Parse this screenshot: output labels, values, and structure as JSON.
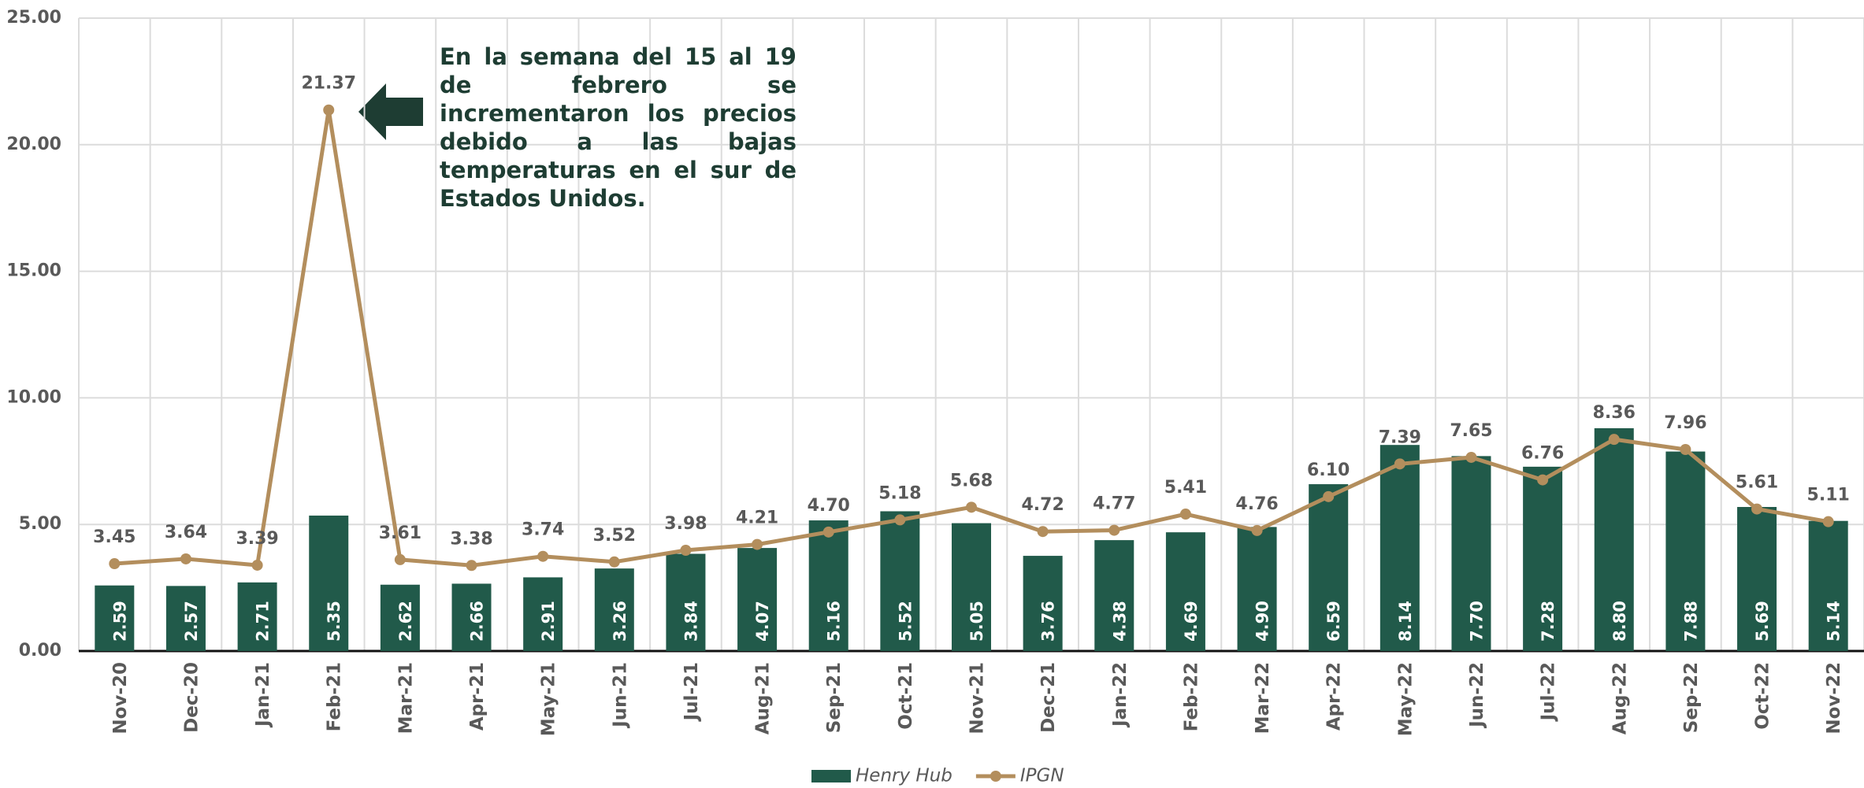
{
  "chart_data": {
    "type": "bar",
    "annotation": "En la semana del 15 al 19 de febrero se incrementaron los precios debido a las bajas temperaturas en el sur de Estados Unidos.",
    "categories": [
      "Nov-20",
      "Dec-20",
      "Jan-21",
      "Feb-21",
      "Mar-21",
      "Apr-21",
      "May-21",
      "Jun-21",
      "Jul-21",
      "Aug-21",
      "Sep-21",
      "Oct-21",
      "Nov-21",
      "Dec-21",
      "Jan-22",
      "Feb-22",
      "Mar-22",
      "Apr-22",
      "May-22",
      "Jun-22",
      "Jul-22",
      "Aug-22",
      "Sep-22",
      "Oct-22",
      "Nov-22"
    ],
    "series": [
      {
        "name": "Henry Hub",
        "type": "bar",
        "color": "#215a4a",
        "values": [
          2.59,
          2.57,
          2.71,
          5.35,
          2.62,
          2.66,
          2.91,
          3.26,
          3.84,
          4.07,
          5.16,
          5.52,
          5.05,
          3.76,
          4.38,
          4.69,
          4.9,
          6.59,
          8.14,
          7.7,
          7.28,
          8.8,
          7.88,
          5.69,
          5.14
        ],
        "value_labels": [
          "2.59",
          "2.57",
          "2.71",
          "5.35",
          "2.62",
          "2.66",
          "2.91",
          "3.26",
          "3.84",
          "4.07",
          "5.16",
          "5.52",
          "5.05",
          "3.76",
          "4.38",
          "4.69",
          "4.90",
          "6.59",
          "8.14",
          "7.70",
          "7.28",
          "8.80",
          "7.88",
          "5.69",
          "5.14"
        ]
      },
      {
        "name": "IPGN",
        "type": "line",
        "color": "#b38e5d",
        "values": [
          3.45,
          3.64,
          3.39,
          21.37,
          3.61,
          3.38,
          3.74,
          3.52,
          3.98,
          4.21,
          4.7,
          5.18,
          5.68,
          4.72,
          4.77,
          5.41,
          4.76,
          6.1,
          7.39,
          7.65,
          6.76,
          8.36,
          7.96,
          5.61,
          5.11
        ],
        "value_labels": [
          "3.45",
          "3.64",
          "3.39",
          "21.37",
          "3.61",
          "3.38",
          "3.74",
          "3.52",
          "3.98",
          "4.21",
          "4.70",
          "5.18",
          "5.68",
          "4.72",
          "4.77",
          "5.41",
          "4.76",
          "6.10",
          "7.39",
          "7.65",
          "6.76",
          "8.36",
          "7.96",
          "5.61",
          "5.11"
        ]
      }
    ],
    "ylim": [
      0,
      25
    ],
    "yticks": [
      {
        "value": 0,
        "label": "0.00"
      },
      {
        "value": 5,
        "label": "5.00"
      },
      {
        "value": 10,
        "label": "10.00"
      },
      {
        "value": 15,
        "label": "15.00"
      },
      {
        "value": 20,
        "label": "20.00"
      },
      {
        "value": 25,
        "label": "25.00"
      }
    ],
    "grid": true
  }
}
